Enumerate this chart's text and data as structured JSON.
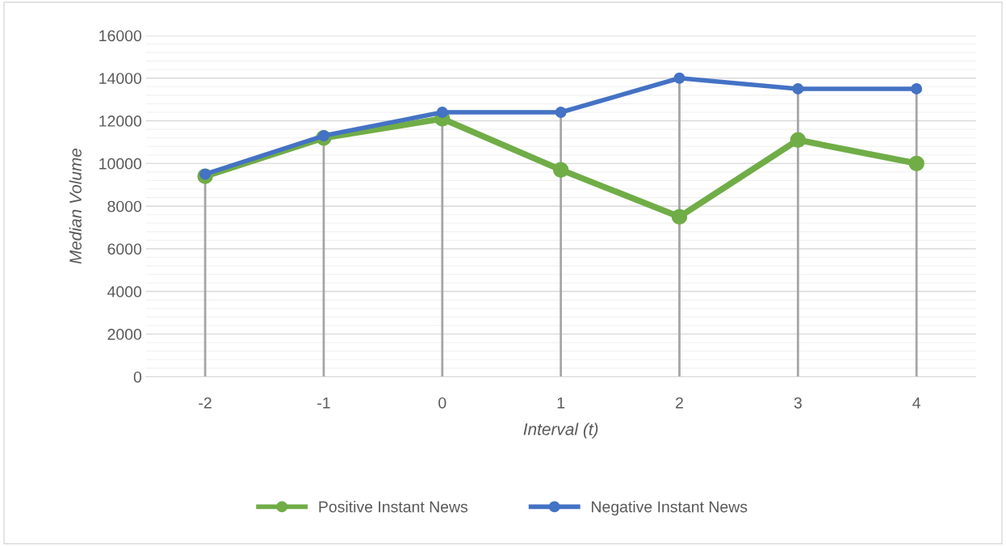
{
  "chart_data": {
    "type": "line",
    "xlabel": "Interval (t)",
    "ylabel": "Median Volume",
    "categories": [
      "-2",
      "-1",
      "0",
      "1",
      "2",
      "3",
      "4"
    ],
    "series": [
      {
        "name": "Positive Instant News",
        "color": "#70ad47",
        "values": [
          9400,
          11200,
          12100,
          9700,
          7500,
          11100,
          10000
        ]
      },
      {
        "name": "Negative Instant News",
        "color": "#4472c4",
        "values": [
          9500,
          11300,
          12400,
          12400,
          14000,
          13500,
          13500
        ]
      }
    ],
    "ylim": [
      0,
      16000
    ],
    "yticks": [
      0,
      2000,
      4000,
      6000,
      8000,
      10000,
      12000,
      14000,
      16000
    ],
    "grid": "y",
    "legend": "bottom",
    "marker": "circle",
    "line_style": "solid",
    "ref_lines": [
      {
        "axis": "x",
        "value": "-2",
        "color": "#a5a5a5"
      },
      {
        "axis": "x",
        "value": "-1",
        "color": "#a5a5a5"
      },
      {
        "axis": "x",
        "value": "0",
        "color": "#a5a5a5"
      },
      {
        "axis": "x",
        "value": "1",
        "color": "#a5a5a5"
      },
      {
        "axis": "x",
        "value": "2",
        "color": "#a5a5a5"
      },
      {
        "axis": "x",
        "value": "3",
        "color": "#a5a5a5"
      },
      {
        "axis": "x",
        "value": "4",
        "color": "#a5a5a5"
      }
    ]
  }
}
